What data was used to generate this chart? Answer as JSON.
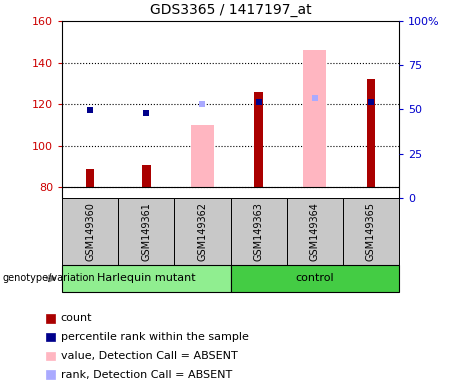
{
  "title": "GDS3365 / 1417197_at",
  "samples": [
    "GSM149360",
    "GSM149361",
    "GSM149362",
    "GSM149363",
    "GSM149364",
    "GSM149365"
  ],
  "group_spans": [
    [
      0,
      2,
      "Harlequin mutant"
    ],
    [
      3,
      5,
      "control"
    ]
  ],
  "ylim_left": [
    75,
    160
  ],
  "ylim_right": [
    0,
    100
  ],
  "yticks_left": [
    80,
    100,
    120,
    140,
    160
  ],
  "yticks_right": [
    0,
    25,
    50,
    75,
    100
  ],
  "ytick_right_labels": [
    "0",
    "25",
    "50",
    "75",
    "100%"
  ],
  "count_values": [
    89,
    91,
    null,
    126,
    null,
    132
  ],
  "percentile_values": [
    117,
    116,
    null,
    121,
    null,
    121
  ],
  "absent_value_bars": [
    null,
    null,
    110,
    null,
    146,
    null
  ],
  "absent_rank_markers": [
    null,
    null,
    120,
    null,
    123,
    null
  ],
  "bar_bottom": 80,
  "count_color": "#AA0000",
  "percentile_color": "#00008B",
  "absent_value_color": "#FFB6C1",
  "absent_rank_color": "#AAAAFF",
  "absent_value_bar_width": 0.4,
  "count_bar_width": 0.15,
  "grid_color": "#000000",
  "grid_linestyle": ":",
  "grid_linewidth": 0.8,
  "left_tick_color": "#CC0000",
  "right_tick_color": "#0000CC",
  "sample_box_color": "#C8C8C8",
  "group_box_color_1": "#90EE90",
  "group_box_color_2": "#44CC44",
  "legend_items": [
    {
      "label": "count",
      "color": "#AA0000"
    },
    {
      "label": "percentile rank within the sample",
      "color": "#00008B"
    },
    {
      "label": "value, Detection Call = ABSENT",
      "color": "#FFB6C1"
    },
    {
      "label": "rank, Detection Call = ABSENT",
      "color": "#AAAAFF"
    }
  ],
  "legend_square_size": 8,
  "legend_fontsize": 8,
  "title_fontsize": 10,
  "tick_fontsize": 8,
  "sample_fontsize": 7,
  "geno_label": "genotype/variation"
}
